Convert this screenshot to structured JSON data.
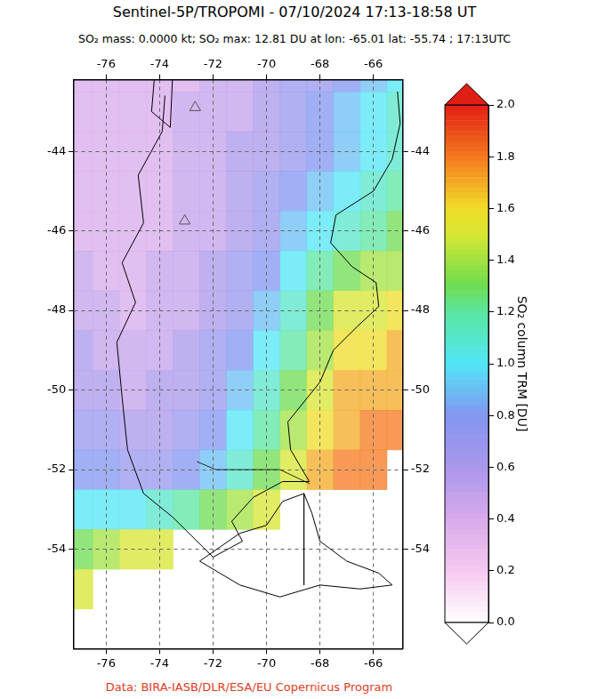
{
  "chart_data": {
    "type": "map",
    "title": "Sentinel-5P/TROPOMI - 07/10/2024 17:13-18:58 UT",
    "subtitle": "SO₂ mass: 0.0000 kt; SO₂ max: 12.81 DU at lon: -65.01 lat: -55.74 ; 17:13UTC",
    "footer": "Data: BIRA-IASB/DLR/ESA/EU Copernicus Program",
    "xlim": [
      -77.2,
      -64.9
    ],
    "xticks": [
      -76,
      -74,
      -72,
      -70,
      -68,
      -66
    ],
    "ylim": [
      -56.5,
      -42.2
    ],
    "yticks": [
      -44,
      -46,
      -48,
      -50,
      -52,
      -54
    ],
    "grid": true,
    "legend": false,
    "cells": {
      "x": [
        -77,
        -76,
        -75,
        -74,
        -73,
        -72,
        -71,
        -70,
        -69,
        -68,
        -67,
        -66,
        -65
      ],
      "y": [
        -42,
        -43,
        -44,
        -45,
        -46,
        -47,
        -48,
        -49,
        -50,
        -51,
        -52,
        -53,
        -54,
        -55,
        -56
      ],
      "values": [
        [
          0.4,
          0.4,
          0.4,
          0.4,
          0.4,
          0.5,
          0.5,
          0.6,
          0.7,
          0.7,
          0.8,
          0.9,
          1.0
        ],
        [
          0.4,
          0.4,
          0.4,
          0.4,
          0.5,
          0.5,
          0.5,
          0.6,
          0.7,
          0.8,
          0.9,
          1.0,
          1.1
        ],
        [
          0.4,
          0.4,
          0.4,
          0.4,
          0.5,
          0.5,
          0.6,
          0.6,
          0.7,
          0.8,
          0.9,
          1.0,
          1.1
        ],
        [
          0.4,
          0.4,
          0.4,
          0.4,
          0.5,
          0.5,
          0.6,
          0.7,
          0.8,
          0.9,
          1.0,
          1.1,
          1.2
        ],
        [
          0.4,
          0.4,
          0.4,
          0.4,
          0.5,
          0.5,
          0.6,
          0.7,
          0.9,
          1.0,
          1.1,
          1.2,
          1.3
        ],
        [
          0.5,
          0.4,
          0.4,
          0.5,
          0.5,
          0.6,
          0.7,
          0.8,
          1.0,
          1.2,
          1.3,
          1.4,
          1.4
        ],
        [
          0.5,
          0.5,
          0.4,
          0.5,
          0.5,
          0.6,
          0.7,
          0.9,
          1.1,
          1.3,
          1.5,
          1.5,
          1.6
        ],
        [
          0.6,
          0.5,
          0.5,
          0.5,
          0.6,
          0.7,
          0.8,
          1.0,
          1.2,
          1.4,
          1.6,
          1.6,
          1.7
        ],
        [
          0.6,
          0.6,
          0.5,
          0.6,
          0.6,
          0.7,
          0.9,
          1.1,
          1.3,
          1.5,
          1.7,
          1.7,
          1.7
        ],
        [
          0.7,
          0.7,
          0.6,
          0.6,
          0.7,
          0.8,
          1.0,
          1.2,
          1.4,
          1.6,
          1.7,
          1.8,
          1.8
        ],
        [
          0.8,
          0.8,
          0.7,
          0.7,
          0.8,
          0.9,
          1.1,
          1.3,
          1.5,
          1.7,
          1.8,
          1.8,
          null
        ],
        [
          1.0,
          1.0,
          1.0,
          1.1,
          1.2,
          1.3,
          1.4,
          1.5,
          null,
          null,
          null,
          null,
          null
        ],
        [
          1.3,
          1.4,
          1.5,
          1.5,
          null,
          null,
          null,
          null,
          null,
          null,
          null,
          null,
          null
        ],
        [
          1.5,
          null,
          null,
          null,
          null,
          null,
          null,
          null,
          null,
          null,
          null,
          null,
          null
        ],
        [
          null,
          null,
          null,
          null,
          null,
          null,
          null,
          null,
          null,
          null,
          null,
          null,
          null
        ]
      ]
    },
    "colorbar": {
      "label": "SO₂ column TRM [DU]",
      "range": [
        0,
        2
      ],
      "ticks": [
        {
          "value": 0,
          "label": "0.0"
        },
        {
          "value": 0.2,
          "label": "0.2"
        },
        {
          "value": 0.4,
          "label": "0.4"
        },
        {
          "value": 0.6,
          "label": "0.6"
        },
        {
          "value": 0.8,
          "label": "0.8"
        },
        {
          "value": 1,
          "label": "1.0"
        },
        {
          "value": 1.2,
          "label": "1.2"
        },
        {
          "value": 1.4,
          "label": "1.4"
        },
        {
          "value": 1.6,
          "label": "1.6"
        },
        {
          "value": 1.8,
          "label": "1.8"
        },
        {
          "value": 2,
          "label": "2.0"
        }
      ]
    },
    "coastlines": [
      [
        [
          -65.1,
          -42.5
        ],
        [
          -65.0,
          -43.3
        ],
        [
          -65.3,
          -44.2
        ],
        [
          -66.0,
          -45.0
        ],
        [
          -67.4,
          -45.6
        ],
        [
          -67.6,
          -46.3
        ],
        [
          -66.8,
          -46.9
        ],
        [
          -65.9,
          -47.3
        ],
        [
          -65.8,
          -47.9
        ],
        [
          -66.6,
          -48.4
        ],
        [
          -67.5,
          -49.0
        ],
        [
          -68.0,
          -49.8
        ],
        [
          -68.6,
          -50.3
        ],
        [
          -69.2,
          -50.8
        ],
        [
          -69.1,
          -51.5
        ],
        [
          -68.4,
          -52.3
        ],
        [
          -69.4,
          -52.3
        ],
        [
          -70.5,
          -52.7
        ],
        [
          -71.3,
          -53.3
        ],
        [
          -70.9,
          -53.8
        ],
        [
          -72.0,
          -54.2
        ],
        [
          -73.5,
          -53.2
        ],
        [
          -74.6,
          -52.6
        ],
        [
          -75.2,
          -51.5
        ],
        [
          -75.4,
          -50.2
        ],
        [
          -75.6,
          -48.8
        ],
        [
          -74.9,
          -47.8
        ],
        [
          -75.4,
          -46.8
        ],
        [
          -74.6,
          -45.8
        ],
        [
          -74.8,
          -44.6
        ],
        [
          -73.9,
          -43.5
        ],
        [
          -73.8,
          -42.6
        ]
      ],
      [
        [
          -68.6,
          -52.6
        ],
        [
          -68.3,
          -53.1
        ],
        [
          -68.0,
          -53.8
        ],
        [
          -67.0,
          -54.3
        ],
        [
          -65.8,
          -54.6
        ],
        [
          -65.3,
          -54.9
        ],
        [
          -66.5,
          -55.0
        ],
        [
          -68.0,
          -54.9
        ],
        [
          -69.5,
          -55.2
        ],
        [
          -71.0,
          -54.9
        ],
        [
          -72.5,
          -54.3
        ],
        [
          -71.0,
          -53.6
        ],
        [
          -70.0,
          -53.4
        ],
        [
          -69.4,
          -52.8
        ],
        [
          -68.6,
          -52.6
        ]
      ],
      [
        [
          -73.5,
          -41.9
        ],
        [
          -74.2,
          -42.2
        ],
        [
          -74.3,
          -43.0
        ],
        [
          -73.6,
          -43.4
        ],
        [
          -73.5,
          -41.9
        ]
      ]
    ],
    "borders": [
      [
        [
          -72.6,
          -51.8
        ],
        [
          -71.9,
          -52.0
        ],
        [
          -69.5,
          -52.0
        ],
        [
          -68.4,
          -52.35
        ]
      ],
      [
        [
          -68.6,
          -52.6
        ],
        [
          -68.6,
          -54.9
        ]
      ]
    ],
    "volcanoes": [
      [
        -72.67,
        -42.9
      ],
      [
        -73.06,
        -45.75
      ]
    ]
  }
}
